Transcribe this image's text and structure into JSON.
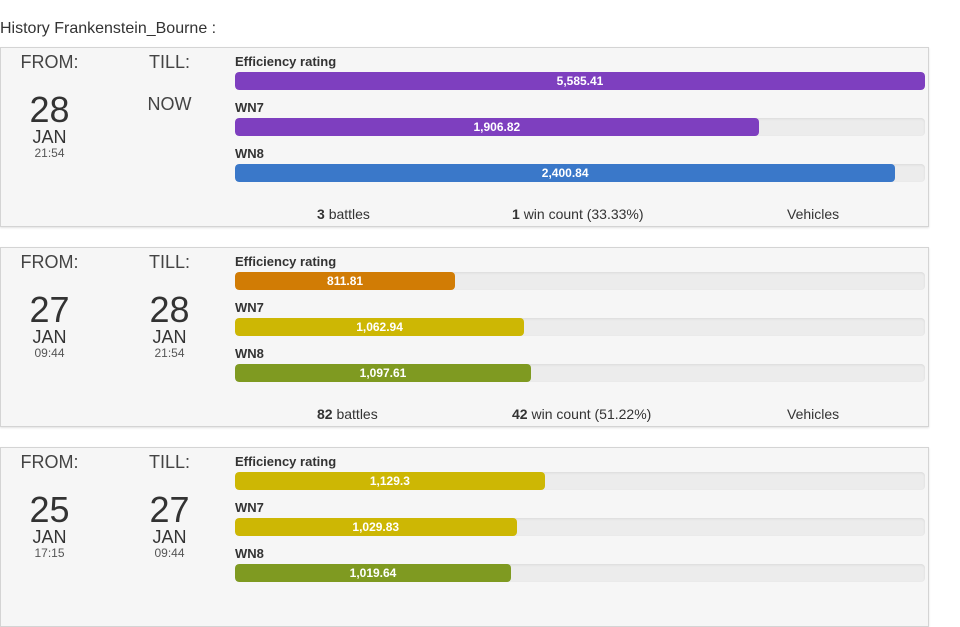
{
  "history_title": "History Frankenstein_Bourne :",
  "labels": {
    "from": "FROM:",
    "till": "TILL:",
    "efficiency": "Efficiency rating",
    "wn7": "WN7",
    "wn8": "WN8",
    "battles_suffix": "battles",
    "wins_suffix": "win count",
    "vehicles": "Vehicles"
  },
  "colors": {
    "purple": "#7e3fbf",
    "blue": "#3a78c9",
    "orange": "#d17c05",
    "yellow": "#cdb704",
    "green": "#7f9a21"
  },
  "periods": [
    {
      "from": {
        "day": "28",
        "month": "JAN",
        "time": "21:54"
      },
      "till": {
        "now": "NOW"
      },
      "efficiency": {
        "value": "5,585.41",
        "fill": 1.0,
        "color": "purple"
      },
      "wn7": {
        "value": "1,906.82",
        "fill": 0.759,
        "color": "purple"
      },
      "wn8": {
        "value": "2,400.84",
        "fill": 0.957,
        "color": "blue"
      },
      "battles": "3",
      "wins": "1",
      "win_pct": "(33.33%)"
    },
    {
      "from": {
        "day": "27",
        "month": "JAN",
        "time": "09:44"
      },
      "till": {
        "day": "28",
        "month": "JAN",
        "time": "21:54"
      },
      "efficiency": {
        "value": "811.81",
        "fill": 0.319,
        "color": "orange"
      },
      "wn7": {
        "value": "1,062.94",
        "fill": 0.419,
        "color": "yellow"
      },
      "wn8": {
        "value": "1,097.61",
        "fill": 0.429,
        "color": "green"
      },
      "battles": "82",
      "wins": "42",
      "win_pct": "(51.22%)"
    },
    {
      "from": {
        "day": "25",
        "month": "JAN",
        "time": "17:15"
      },
      "till": {
        "day": "27",
        "month": "JAN",
        "time": "09:44"
      },
      "efficiency": {
        "value": "1,129.3",
        "fill": 0.449,
        "color": "yellow"
      },
      "wn7": {
        "value": "1,029.83",
        "fill": 0.408,
        "color": "yellow"
      },
      "wn8": {
        "value": "1,019.64",
        "fill": 0.4,
        "color": "green"
      }
    }
  ]
}
